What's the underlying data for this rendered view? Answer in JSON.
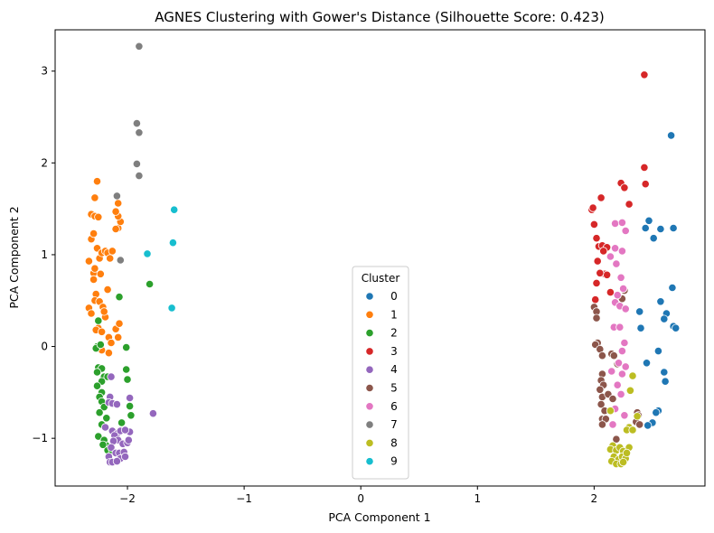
{
  "chart_data": {
    "type": "scatter",
    "title": "AGNES Clustering with Gower's Distance (Silhouette Score: 0.423)",
    "xlabel": "PCA Component 1",
    "ylabel": "PCA Component 2",
    "xlim": [
      -2.62,
      2.95
    ],
    "ylim": [
      -1.52,
      3.45
    ],
    "xticks": [
      -2,
      -1,
      0,
      1,
      2
    ],
    "yticks": [
      -1,
      0,
      1,
      2,
      3
    ],
    "xtick_labels": [
      "−2",
      "−1",
      "0",
      "1",
      "2"
    ],
    "ytick_labels": [
      "−1",
      "0",
      "1",
      "2",
      "3"
    ],
    "legend": {
      "title": "Cluster",
      "placement": "lower-center"
    },
    "series": [
      {
        "name": "0",
        "color": "#1f77b4",
        "points": [
          [
            2.66,
            2.3
          ],
          [
            2.47,
            1.37
          ],
          [
            2.51,
            1.18
          ],
          [
            2.57,
            1.28
          ],
          [
            2.68,
            1.29
          ],
          [
            2.44,
            1.29
          ],
          [
            2.67,
            0.64
          ],
          [
            2.57,
            0.49
          ],
          [
            2.62,
            0.36
          ],
          [
            2.6,
            0.3
          ],
          [
            2.68,
            0.22
          ],
          [
            2.7,
            0.2
          ],
          [
            2.39,
            0.38
          ],
          [
            2.4,
            0.2
          ],
          [
            2.55,
            -0.05
          ],
          [
            2.45,
            -0.18
          ],
          [
            2.6,
            -0.28
          ],
          [
            2.61,
            -0.38
          ],
          [
            2.55,
            -0.7
          ],
          [
            2.53,
            -0.72
          ],
          [
            2.5,
            -0.83
          ],
          [
            2.46,
            -0.86
          ]
        ]
      },
      {
        "name": "1",
        "color": "#ff7f0e",
        "points": [
          [
            -2.26,
            1.8
          ],
          [
            -2.28,
            1.62
          ],
          [
            -2.31,
            1.44
          ],
          [
            -2.28,
            1.42
          ],
          [
            -2.25,
            1.41
          ],
          [
            -2.31,
            1.17
          ],
          [
            -2.29,
            1.23
          ],
          [
            -2.26,
            1.07
          ],
          [
            -2.24,
            0.96
          ],
          [
            -2.22,
            1.02
          ],
          [
            -2.19,
            1.04
          ],
          [
            -2.17,
            1.02
          ],
          [
            -2.13,
            1.04
          ],
          [
            -2.15,
            0.96
          ],
          [
            -2.33,
            0.93
          ],
          [
            -2.29,
            0.8
          ],
          [
            -2.28,
            0.85
          ],
          [
            -2.29,
            0.73
          ],
          [
            -2.23,
            0.79
          ],
          [
            -2.27,
            0.57
          ],
          [
            -2.28,
            0.5
          ],
          [
            -2.24,
            0.49
          ],
          [
            -2.33,
            0.42
          ],
          [
            -2.31,
            0.36
          ],
          [
            -2.21,
            0.43
          ],
          [
            -2.19,
            0.32
          ],
          [
            -2.25,
            0.2
          ],
          [
            -2.27,
            0.18
          ],
          [
            -2.22,
            0.16
          ],
          [
            -2.16,
            0.1
          ],
          [
            -2.14,
            0.04
          ],
          [
            -2.16,
            -0.07
          ],
          [
            -2.22,
            -0.04
          ],
          [
            -2.1,
            0.19
          ],
          [
            -2.08,
            0.1
          ],
          [
            -2.07,
            0.25
          ],
          [
            -2.08,
            1.29
          ],
          [
            -2.06,
            1.36
          ],
          [
            -2.08,
            1.42
          ],
          [
            -2.1,
            1.47
          ],
          [
            -2.08,
            1.56
          ],
          [
            -2.1,
            1.28
          ],
          [
            -2.17,
            0.62
          ],
          [
            -2.2,
            0.38
          ]
        ]
      },
      {
        "name": "2",
        "color": "#2ca02c",
        "points": [
          [
            -1.81,
            0.68
          ],
          [
            -2.07,
            0.54
          ],
          [
            -2.25,
            0.28
          ],
          [
            -2.26,
            0.0
          ],
          [
            -2.27,
            -0.02
          ],
          [
            -2.23,
            0.02
          ],
          [
            -2.01,
            -0.01
          ],
          [
            -2.25,
            -0.23
          ],
          [
            -2.22,
            -0.24
          ],
          [
            -2.26,
            -0.28
          ],
          [
            -2.2,
            -0.33
          ],
          [
            -2.17,
            -0.33
          ],
          [
            -2.22,
            -0.38
          ],
          [
            -2.26,
            -0.43
          ],
          [
            -2.22,
            -0.5
          ],
          [
            -2.24,
            -0.55
          ],
          [
            -2.22,
            -0.6
          ],
          [
            -2.2,
            -0.66
          ],
          [
            -2.24,
            -0.72
          ],
          [
            -2.18,
            -0.78
          ],
          [
            -2.22,
            -0.85
          ],
          [
            -2.25,
            -0.98
          ],
          [
            -2.2,
            -1.02
          ],
          [
            -2.18,
            -1.08
          ],
          [
            -2.17,
            -1.13
          ],
          [
            -2.13,
            -1.14
          ],
          [
            -2.21,
            -1.07
          ],
          [
            -2.01,
            -0.25
          ],
          [
            -2.0,
            -0.36
          ],
          [
            -1.98,
            -0.65
          ],
          [
            -1.97,
            -0.75
          ],
          [
            -2.05,
            -0.83
          ]
        ]
      },
      {
        "name": "4",
        "color": "#9467bd",
        "points": [
          [
            -2.14,
            -0.33
          ],
          [
            -2.15,
            -0.55
          ],
          [
            -2.16,
            -0.61
          ],
          [
            -2.13,
            -0.62
          ],
          [
            -2.09,
            -0.63
          ],
          [
            -1.98,
            -0.56
          ],
          [
            -2.19,
            -0.88
          ],
          [
            -2.13,
            -0.92
          ],
          [
            -2.09,
            -0.95
          ],
          [
            -2.06,
            -0.92
          ],
          [
            -2.11,
            -0.97
          ],
          [
            -2.08,
            -1.02
          ],
          [
            -2.04,
            -1.06
          ],
          [
            -2.0,
            -1.05
          ],
          [
            -2.12,
            -1.03
          ],
          [
            -2.14,
            -1.1
          ],
          [
            -2.1,
            -1.16
          ],
          [
            -2.16,
            -1.2
          ],
          [
            -2.15,
            -1.26
          ],
          [
            -2.13,
            -1.26
          ],
          [
            -2.07,
            -1.16
          ],
          [
            -2.06,
            -1.22
          ],
          [
            -2.03,
            -1.15
          ],
          [
            -2.02,
            -1.2
          ],
          [
            -1.99,
            -1.02
          ],
          [
            -1.98,
            -0.93
          ],
          [
            -2.02,
            -0.91
          ],
          [
            -1.78,
            -0.73
          ],
          [
            -2.09,
            -1.25
          ]
        ]
      },
      {
        "name": "3",
        "color": "#d62728",
        "points": [
          [
            2.43,
            2.96
          ],
          [
            2.43,
            1.95
          ],
          [
            2.44,
            1.77
          ],
          [
            2.23,
            1.78
          ],
          [
            2.26,
            1.73
          ],
          [
            2.3,
            1.55
          ],
          [
            1.98,
            1.49
          ],
          [
            1.99,
            1.51
          ],
          [
            2.06,
            1.62
          ],
          [
            2.0,
            1.33
          ],
          [
            2.02,
            1.18
          ],
          [
            2.04,
            1.09
          ],
          [
            2.07,
            1.1
          ],
          [
            2.11,
            1.08
          ],
          [
            2.08,
            1.04
          ],
          [
            2.03,
            0.93
          ],
          [
            2.09,
            0.79
          ],
          [
            2.11,
            0.78
          ],
          [
            2.05,
            0.8
          ],
          [
            2.02,
            0.69
          ],
          [
            2.14,
            0.59
          ],
          [
            2.01,
            0.51
          ]
        ]
      },
      {
        "name": "5",
        "color": "#8c564b",
        "points": [
          [
            2.26,
            0.61
          ],
          [
            2.24,
            0.52
          ],
          [
            2.0,
            0.43
          ],
          [
            2.02,
            0.38
          ],
          [
            2.02,
            0.31
          ],
          [
            2.22,
            0.21
          ],
          [
            2.03,
            0.04
          ],
          [
            2.01,
            0.02
          ],
          [
            2.05,
            -0.03
          ],
          [
            2.07,
            -0.1
          ],
          [
            2.15,
            -0.08
          ],
          [
            2.17,
            -0.1
          ],
          [
            2.2,
            -0.19
          ],
          [
            2.07,
            -0.3
          ],
          [
            2.06,
            -0.37
          ],
          [
            2.08,
            -0.42
          ],
          [
            2.05,
            -0.47
          ],
          [
            2.07,
            -0.55
          ],
          [
            2.12,
            -0.52
          ],
          [
            2.16,
            -0.57
          ],
          [
            2.06,
            -0.63
          ],
          [
            2.09,
            -0.7
          ],
          [
            2.07,
            -0.79
          ],
          [
            2.1,
            -0.79
          ],
          [
            2.07,
            -0.85
          ],
          [
            2.37,
            -0.72
          ],
          [
            2.38,
            -0.75
          ],
          [
            2.36,
            -0.82
          ],
          [
            2.39,
            -0.85
          ],
          [
            2.19,
            -1.01
          ]
        ]
      },
      {
        "name": "6",
        "color": "#e377c2",
        "points": [
          [
            2.18,
            1.34
          ],
          [
            2.24,
            1.35
          ],
          [
            2.27,
            1.26
          ],
          [
            2.18,
            1.07
          ],
          [
            2.24,
            1.04
          ],
          [
            2.14,
            0.98
          ],
          [
            2.19,
            0.9
          ],
          [
            2.23,
            0.75
          ],
          [
            2.25,
            0.63
          ],
          [
            2.2,
            0.56
          ],
          [
            2.18,
            0.48
          ],
          [
            2.22,
            0.44
          ],
          [
            2.27,
            0.41
          ],
          [
            2.17,
            0.21
          ],
          [
            2.22,
            0.21
          ],
          [
            2.26,
            0.04
          ],
          [
            2.24,
            -0.05
          ],
          [
            2.21,
            -0.18
          ],
          [
            2.27,
            -0.22
          ],
          [
            2.24,
            -0.3
          ],
          [
            2.15,
            -0.27
          ],
          [
            2.2,
            -0.42
          ],
          [
            2.23,
            -0.52
          ],
          [
            2.18,
            -0.68
          ],
          [
            2.26,
            -0.75
          ],
          [
            2.16,
            -0.85
          ]
        ]
      },
      {
        "name": "7",
        "color": "#7f7f7f",
        "points": [
          [
            -1.9,
            3.27
          ],
          [
            -1.92,
            2.43
          ],
          [
            -1.9,
            2.33
          ],
          [
            -1.92,
            1.99
          ],
          [
            -1.9,
            1.86
          ],
          [
            -2.09,
            1.64
          ],
          [
            -2.06,
            0.94
          ]
        ]
      },
      {
        "name": "8",
        "color": "#bcbd22",
        "points": [
          [
            2.33,
            -0.32
          ],
          [
            2.31,
            -0.48
          ],
          [
            2.14,
            -0.7
          ],
          [
            2.37,
            -0.76
          ],
          [
            2.3,
            -0.88
          ],
          [
            2.28,
            -0.91
          ],
          [
            2.33,
            -0.91
          ],
          [
            2.16,
            -1.08
          ],
          [
            2.14,
            -1.12
          ],
          [
            2.19,
            -1.13
          ],
          [
            2.22,
            -1.1
          ],
          [
            2.25,
            -1.14
          ],
          [
            2.3,
            -1.1
          ],
          [
            2.17,
            -1.2
          ],
          [
            2.21,
            -1.23
          ],
          [
            2.24,
            -1.2
          ],
          [
            2.27,
            -1.22
          ],
          [
            2.28,
            -1.16
          ],
          [
            2.15,
            -1.25
          ],
          [
            2.19,
            -1.28
          ],
          [
            2.23,
            -1.28
          ],
          [
            2.25,
            -1.26
          ]
        ]
      },
      {
        "name": "9",
        "color": "#17becf",
        "points": [
          [
            -1.6,
            1.49
          ],
          [
            -1.61,
            1.13
          ],
          [
            -1.83,
            1.01
          ],
          [
            -1.62,
            0.42
          ]
        ]
      }
    ]
  }
}
